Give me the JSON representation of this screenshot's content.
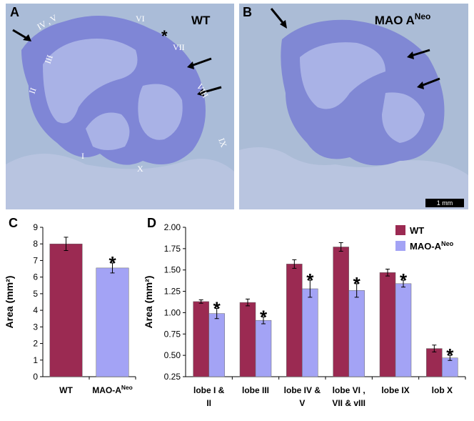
{
  "images": [
    {
      "label": "A",
      "title": "WT",
      "marker": "*",
      "lobules": [
        "IV , V",
        "VI",
        "VII",
        "VIII",
        "IX",
        "X",
        "I",
        "II",
        "III"
      ]
    },
    {
      "label": "B",
      "title": {
        "text": "MAO A",
        "sup": "Neo"
      },
      "scale_bar": "1 mm"
    }
  ],
  "chart_data": [
    {
      "type": "bar",
      "panel_label": "C",
      "y_label": "Area (mm²)",
      "categories": [
        [
          "WT"
        ],
        [
          {
            "text": "MAO-A",
            "sup": "Neo"
          }
        ]
      ],
      "values": [
        8.0,
        6.55
      ],
      "errors": [
        0.4,
        0.3
      ],
      "colors": [
        "#9b2a52",
        "#a3a3f5"
      ],
      "significance_marker": "*",
      "marked_categories": [
        1
      ],
      "ylim": [
        0,
        9
      ],
      "yticks": [
        0,
        1,
        2,
        3,
        4,
        5,
        6,
        7,
        8,
        9
      ]
    },
    {
      "type": "bar",
      "panel_label": "D",
      "y_label": "Area (mm²)",
      "categories": [
        [
          "lobe I &",
          "II"
        ],
        [
          "lobe III"
        ],
        [
          "lobe IV &",
          "V"
        ],
        [
          "lobe VI ,",
          "VII & vIII"
        ],
        [
          "lobe IX"
        ],
        [
          "lob X"
        ]
      ],
      "series": [
        {
          "name": "WT",
          "color": "#9b2a52",
          "values": [
            1.13,
            1.12,
            1.57,
            1.77,
            1.47,
            0.58
          ],
          "errors": [
            0.02,
            0.04,
            0.05,
            0.05,
            0.04,
            0.04
          ]
        },
        {
          "name": {
            "text": "MAO-A",
            "sup": "Neo"
          },
          "color": "#a3a3f5",
          "values": [
            0.99,
            0.91,
            1.28,
            1.26,
            1.34,
            0.47
          ],
          "errors": [
            0.06,
            0.04,
            0.1,
            0.08,
            0.04,
            0.03
          ],
          "marked": true
        }
      ],
      "significance_marker": "*",
      "legend": "upper right",
      "ylim": [
        0.25,
        2.0
      ],
      "yticks": [
        0.25,
        {
          "value": 0.5,
          "label": "0.50"
        },
        0.75,
        {
          "value": 1,
          "label": "1.00"
        },
        1.25,
        {
          "value": 1.5,
          "label": "1.50"
        },
        1.75,
        {
          "value": 2,
          "label": "2.00"
        }
      ]
    }
  ]
}
